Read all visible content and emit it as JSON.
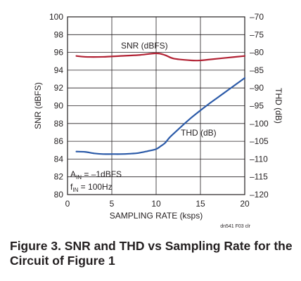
{
  "chart_data": {
    "type": "line",
    "x": [
      1,
      2,
      4,
      6,
      8,
      10,
      11,
      12,
      14,
      16,
      18,
      20
    ],
    "xlabel": "SAMPLING RATE (ksps)",
    "xlim": [
      0,
      20
    ],
    "xticks": [
      0,
      5,
      10,
      15,
      20
    ],
    "ylabel": "SNR (dBFS)",
    "ylim": [
      80,
      100
    ],
    "yticks": [
      80,
      82,
      84,
      86,
      88,
      90,
      92,
      94,
      96,
      98,
      100
    ],
    "y2label": "THD (dB)",
    "y2lim": [
      -120,
      -70
    ],
    "y2ticks": [
      "-70",
      "-75",
      "-80",
      "-85",
      "-90",
      "-95",
      "-100",
      "-105",
      "-110",
      "-115",
      "-120"
    ],
    "y2tick_values": [
      -70,
      -75,
      -80,
      -85,
      -90,
      -95,
      -100,
      -105,
      -110,
      -115,
      -120
    ],
    "grid": true,
    "series": [
      {
        "name": "SNR (dBFS)",
        "axis": "left",
        "color": "#b22234",
        "x": [
          1,
          2,
          4,
          6,
          8,
          10,
          11,
          12,
          14,
          15,
          16,
          18,
          20
        ],
        "values": [
          95.6,
          95.5,
          95.5,
          95.6,
          95.7,
          95.9,
          95.7,
          95.3,
          95.1,
          95.1,
          95.2,
          95.4,
          95.6
        ]
      },
      {
        "name": "THD (dB)",
        "axis": "right",
        "color": "#2b5aa8",
        "x": [
          1,
          2,
          3,
          4,
          5,
          6,
          7,
          8,
          9,
          10,
          10.5,
          11,
          11.5,
          12,
          13,
          14,
          15,
          16,
          17,
          18,
          19,
          20
        ],
        "values": [
          -107.9,
          -108.0,
          -108.4,
          -108.6,
          -108.6,
          -108.6,
          -108.5,
          -108.3,
          -107.8,
          -107.2,
          -106.4,
          -105.5,
          -104.0,
          -102.8,
          -100.5,
          -98.3,
          -96.3,
          -94.4,
          -92.6,
          -90.8,
          -89.0,
          -87.2
        ]
      }
    ],
    "annotations": {
      "snr_label": "SNR (dBFS)",
      "thd_label": "THD (dB)",
      "ain_main": "A",
      "ain_sub": "IN",
      "ain_value": " = –1dBFS",
      "fin_main": "f",
      "fin_sub": "IN",
      "fin_value": " = 100Hz",
      "corner_note": "dn541 F03 clr"
    },
    "title": "Figure 3. SNR and THD vs Sampling Rate for the Circuit of Figure 1"
  }
}
